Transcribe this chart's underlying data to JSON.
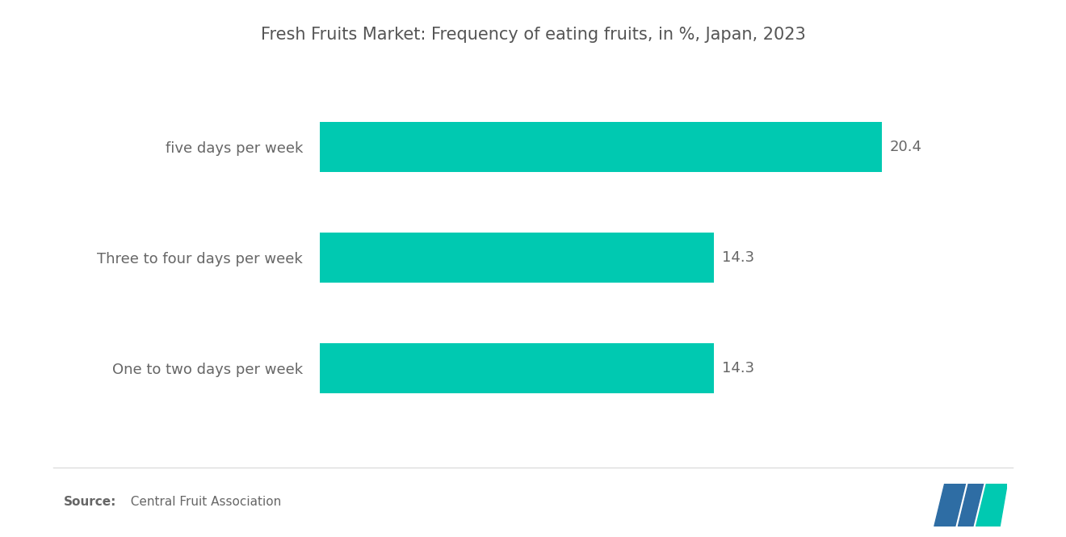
{
  "title": "Fresh Fruits Market: Frequency of eating fruits, in %, Japan, 2023",
  "categories": [
    "One to two days per week",
    "Three to four days per week",
    "five days per week"
  ],
  "values": [
    14.3,
    14.3,
    20.4
  ],
  "bar_color": "#00C9B1",
  "background_color": "#ffffff",
  "title_color": "#555555",
  "label_color": "#666666",
  "value_color": "#666666",
  "title_fontsize": 15,
  "label_fontsize": 13,
  "value_fontsize": 13,
  "xlim": [
    0,
    24
  ],
  "source_bold": "Source:",
  "source_regular": "  Central Fruit Association",
  "logo_blue": "#2E6DA4",
  "logo_teal": "#00C9B1",
  "separator_color": "#dddddd",
  "bar_height": 0.45
}
